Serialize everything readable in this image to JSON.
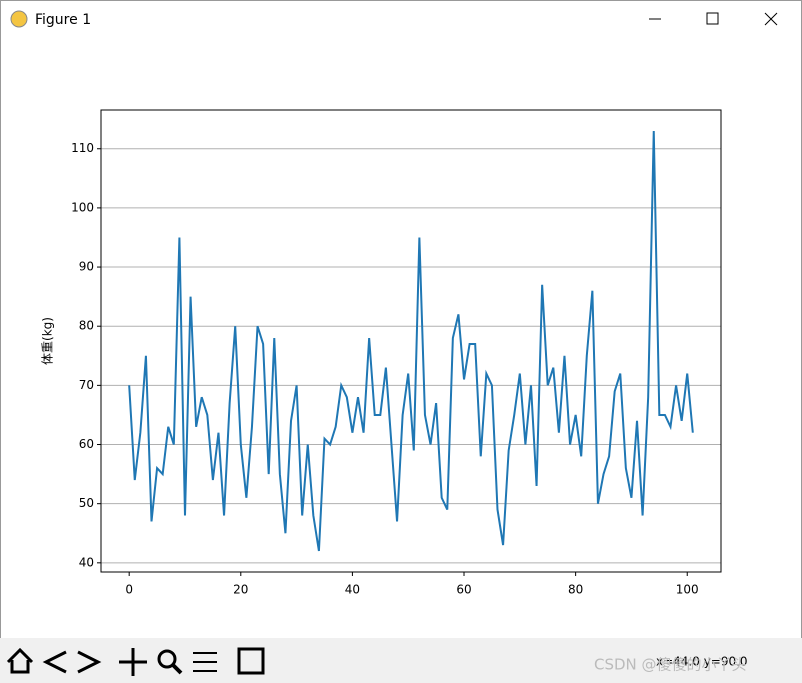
{
  "window": {
    "title": "Figure 1"
  },
  "chart_data": {
    "type": "line",
    "y_label": "体重(kg)",
    "x": [
      0,
      1,
      2,
      3,
      4,
      5,
      6,
      7,
      8,
      9,
      10,
      11,
      12,
      13,
      14,
      15,
      16,
      17,
      18,
      19,
      20,
      21,
      22,
      23,
      24,
      25,
      26,
      27,
      28,
      29,
      30,
      31,
      32,
      33,
      34,
      35,
      36,
      37,
      38,
      39,
      40,
      41,
      42,
      43,
      44,
      45,
      46,
      47,
      48,
      49,
      50,
      51,
      52,
      53,
      54,
      55,
      56,
      57,
      58,
      59,
      60,
      61,
      62,
      63,
      64,
      65,
      66,
      67,
      68,
      69,
      70,
      71,
      72,
      73,
      74,
      75,
      76,
      77,
      78,
      79,
      80,
      81,
      82,
      83,
      84,
      85,
      86,
      87,
      88,
      89,
      90,
      91,
      92,
      93,
      94,
      95,
      96,
      97,
      98,
      99,
      100,
      101
    ],
    "series": [
      {
        "color": "#1f77b4",
        "values": [
          70,
          54,
          62,
          75,
          47,
          56,
          55,
          63,
          60,
          95,
          48,
          85,
          63,
          68,
          65,
          54,
          62,
          48,
          67,
          80,
          60,
          51,
          63,
          80,
          77,
          55,
          78,
          55,
          45,
          64,
          70,
          48,
          60,
          48,
          42,
          61,
          60,
          63,
          70,
          68,
          62,
          68,
          62,
          78,
          65,
          65,
          73,
          60,
          47,
          65,
          72,
          59,
          95,
          65,
          60,
          67,
          51,
          49,
          78,
          82,
          71,
          77,
          77,
          58,
          72,
          70,
          49,
          43,
          59,
          65,
          72,
          60,
          70,
          53,
          87,
          70,
          73,
          62,
          75,
          60,
          65,
          58,
          75,
          86,
          50,
          55,
          58,
          69,
          72,
          56,
          51,
          64,
          48,
          68,
          113,
          65,
          65,
          63,
          70,
          64,
          72,
          62
        ]
      }
    ],
    "xlim": [
      -5.05,
      106.05
    ],
    "ylim": [
      38.45,
      116.55
    ],
    "xticks": [
      0,
      20,
      40,
      60,
      80,
      100
    ],
    "yticks": [
      40,
      50,
      60,
      70,
      80,
      90,
      100,
      110
    ],
    "grid": "y"
  },
  "toolbar": {
    "status": "x=44.0 y=90.0"
  },
  "watermark": "CSDN @傻傻的小丫头"
}
